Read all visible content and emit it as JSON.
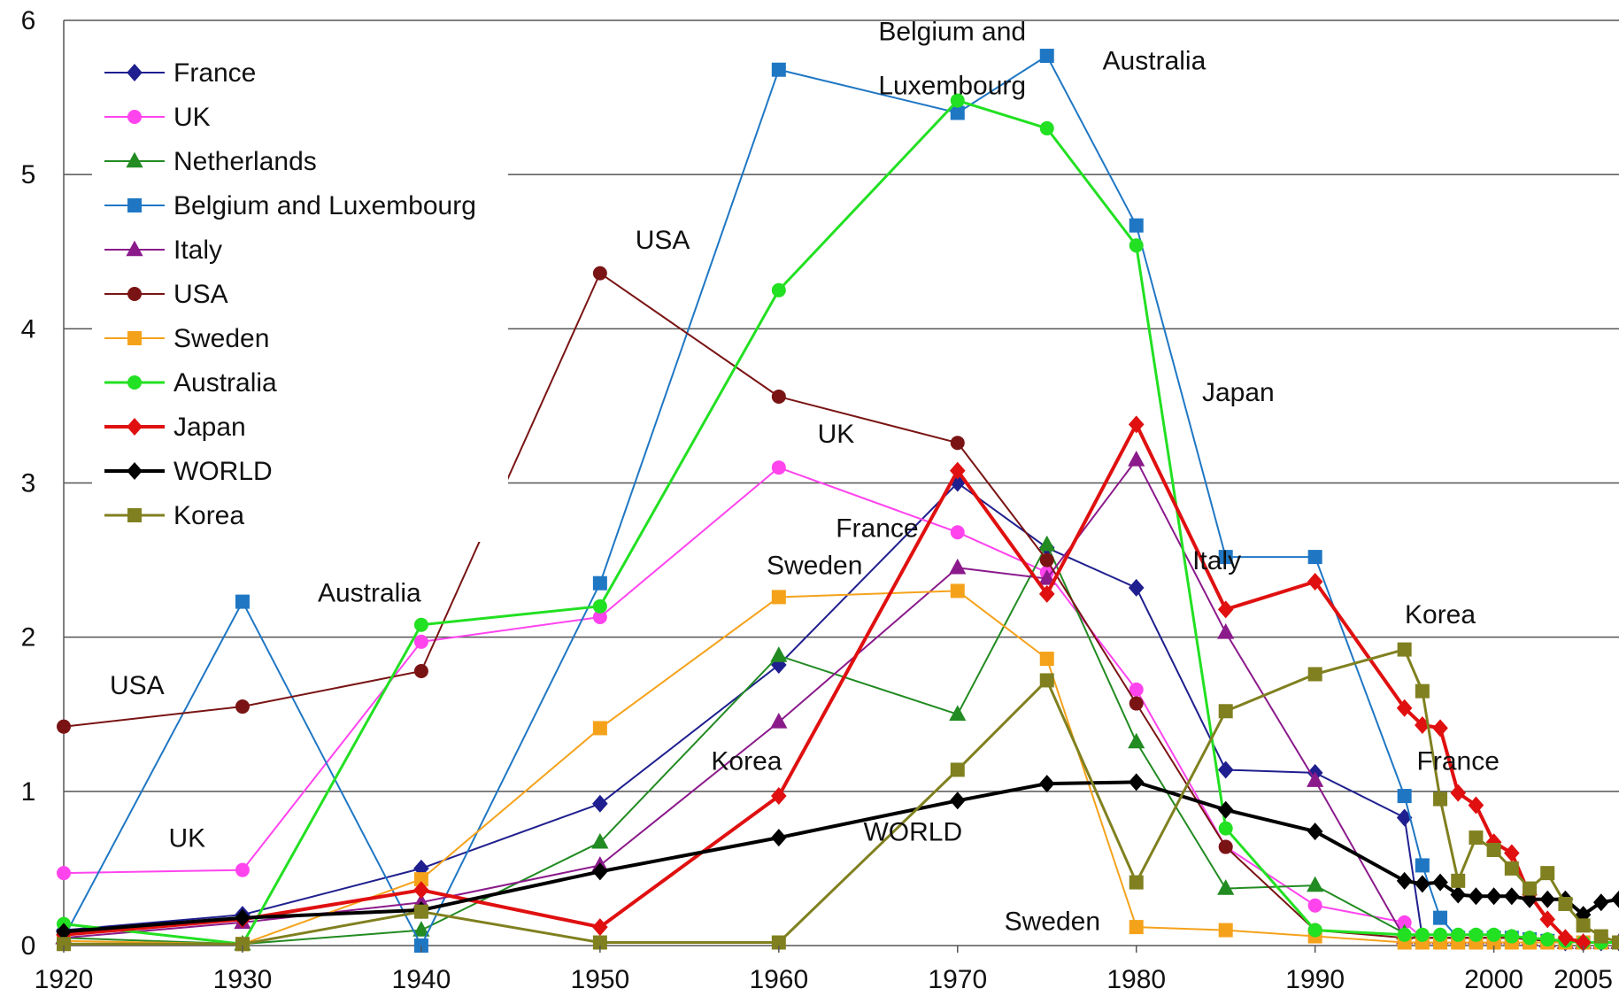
{
  "chart_data": {
    "type": "line",
    "title": "",
    "xlabel": "",
    "ylabel": "",
    "xlim": [
      1920,
      2007
    ],
    "ylim": [
      0,
      6
    ],
    "x_ticks": [
      "1920",
      "1930",
      "1940",
      "1950",
      "1960",
      "1970",
      "1980",
      "1990",
      "2000",
      "2005"
    ],
    "y_ticks": [
      "0",
      "1",
      "2",
      "3",
      "4",
      "5",
      "6"
    ],
    "grid": true,
    "legend_position": "top-left",
    "series": [
      {
        "name": "France",
        "color": "#1f1f8f",
        "marker": "diamond",
        "width": 2,
        "points": [
          [
            1920,
            0.1
          ],
          [
            1930,
            0.2
          ],
          [
            1940,
            0.5
          ],
          [
            1950,
            0.92
          ],
          [
            1960,
            1.82
          ],
          [
            1970,
            3.0
          ],
          [
            1975,
            2.58
          ],
          [
            1980,
            2.32
          ],
          [
            1985,
            1.14
          ],
          [
            1990,
            1.12
          ],
          [
            1995,
            0.83
          ],
          [
            1996,
            0.05
          ],
          [
            1997,
            0.05
          ],
          [
            1998,
            0.05
          ],
          [
            1999,
            0.05
          ],
          [
            2000,
            0.05
          ],
          [
            2001,
            0.05
          ],
          [
            2002,
            0.04
          ],
          [
            2003,
            0.03
          ],
          [
            2004,
            0.02
          ],
          [
            2005,
            0.02
          ],
          [
            2006,
            0.02
          ],
          [
            2007,
            0.02
          ]
        ]
      },
      {
        "name": "UK",
        "color": "#ff44ee",
        "marker": "circle",
        "width": 2,
        "points": [
          [
            1920,
            0.47
          ],
          [
            1930,
            0.49
          ],
          [
            1940,
            1.97
          ],
          [
            1950,
            2.13
          ],
          [
            1960,
            3.1
          ],
          [
            1970,
            2.68
          ],
          [
            1975,
            2.42
          ],
          [
            1980,
            1.66
          ],
          [
            1985,
            0.64
          ],
          [
            1990,
            0.26
          ],
          [
            1995,
            0.15
          ],
          [
            1996,
            0.05
          ],
          [
            1997,
            0.05
          ],
          [
            1998,
            0.05
          ],
          [
            1999,
            0.05
          ],
          [
            2000,
            0.05
          ],
          [
            2001,
            0.05
          ],
          [
            2002,
            0.04
          ],
          [
            2003,
            0.03
          ],
          [
            2004,
            0.02
          ],
          [
            2005,
            0.02
          ],
          [
            2006,
            0.02
          ],
          [
            2007,
            0.02
          ]
        ]
      },
      {
        "name": "Netherlands",
        "color": "#228b22",
        "marker": "triangle",
        "width": 2,
        "points": [
          [
            1920,
            0.05
          ],
          [
            1930,
            0.01
          ],
          [
            1940,
            0.1
          ],
          [
            1950,
            0.67
          ],
          [
            1960,
            1.88
          ],
          [
            1970,
            1.5
          ],
          [
            1975,
            2.6
          ],
          [
            1980,
            1.32
          ],
          [
            1985,
            0.37
          ],
          [
            1990,
            0.39
          ],
          [
            1995,
            0.08
          ],
          [
            1996,
            0.05
          ],
          [
            1997,
            0.05
          ],
          [
            1998,
            0.05
          ],
          [
            1999,
            0.05
          ],
          [
            2000,
            0.05
          ],
          [
            2001,
            0.05
          ],
          [
            2002,
            0.04
          ],
          [
            2003,
            0.03
          ],
          [
            2004,
            0.02
          ],
          [
            2005,
            0.02
          ],
          [
            2006,
            0.02
          ],
          [
            2007,
            0.02
          ]
        ]
      },
      {
        "name": "Belgium and Luxembourg",
        "color": "#1f77c4",
        "marker": "square",
        "width": 2,
        "points": [
          [
            1920,
            0.05
          ],
          [
            1930,
            2.23
          ],
          [
            1940,
            0.0
          ],
          [
            1950,
            2.35
          ],
          [
            1960,
            5.68
          ],
          [
            1970,
            5.4
          ],
          [
            1975,
            5.77
          ],
          [
            1980,
            4.67
          ],
          [
            1985,
            2.52
          ],
          [
            1990,
            2.52
          ],
          [
            1995,
            0.97
          ],
          [
            1996,
            0.52
          ],
          [
            1997,
            0.18
          ],
          [
            1998,
            0.05
          ],
          [
            1999,
            0.05
          ],
          [
            2000,
            0.05
          ],
          [
            2001,
            0.05
          ],
          [
            2002,
            0.04
          ],
          [
            2003,
            0.03
          ],
          [
            2004,
            0.02
          ],
          [
            2005,
            0.02
          ],
          [
            2006,
            0.02
          ],
          [
            2007,
            0.02
          ]
        ]
      },
      {
        "name": "Italy",
        "color": "#8b1a8b",
        "marker": "triangle",
        "width": 2,
        "points": [
          [
            1920,
            0.05
          ],
          [
            1930,
            0.15
          ],
          [
            1940,
            0.28
          ],
          [
            1950,
            0.52
          ],
          [
            1960,
            1.45
          ],
          [
            1970,
            2.45
          ],
          [
            1975,
            2.38
          ],
          [
            1980,
            3.15
          ],
          [
            1985,
            2.03
          ],
          [
            1990,
            1.07
          ],
          [
            1995,
            0.05
          ],
          [
            1996,
            0.05
          ],
          [
            1997,
            0.05
          ],
          [
            1998,
            0.05
          ],
          [
            1999,
            0.05
          ],
          [
            2000,
            0.05
          ],
          [
            2001,
            0.05
          ],
          [
            2002,
            0.04
          ],
          [
            2003,
            0.03
          ],
          [
            2004,
            0.02
          ],
          [
            2005,
            0.02
          ],
          [
            2006,
            0.02
          ],
          [
            2007,
            0.02
          ]
        ]
      },
      {
        "name": "USA",
        "color": "#7a1414",
        "marker": "circle",
        "width": 2,
        "points": [
          [
            1920,
            1.42
          ],
          [
            1930,
            1.55
          ],
          [
            1940,
            1.78
          ],
          [
            1950,
            4.36
          ],
          [
            1960,
            3.56
          ],
          [
            1970,
            3.26
          ],
          [
            1975,
            2.5
          ],
          [
            1980,
            1.57
          ],
          [
            1985,
            0.64
          ],
          [
            1990,
            0.1
          ],
          [
            1995,
            0.05
          ],
          [
            1996,
            0.05
          ],
          [
            1997,
            0.05
          ],
          [
            1998,
            0.05
          ],
          [
            1999,
            0.05
          ],
          [
            2000,
            0.05
          ],
          [
            2001,
            0.05
          ],
          [
            2002,
            0.04
          ],
          [
            2003,
            0.03
          ],
          [
            2004,
            0.02
          ],
          [
            2005,
            0.02
          ],
          [
            2006,
            0.02
          ],
          [
            2007,
            0.02
          ]
        ]
      },
      {
        "name": "Sweden",
        "color": "#f5a21b",
        "marker": "square",
        "width": 2,
        "points": [
          [
            1920,
            0.03
          ],
          [
            1930,
            0.01
          ],
          [
            1940,
            0.43
          ],
          [
            1950,
            1.41
          ],
          [
            1960,
            2.26
          ],
          [
            1970,
            2.3
          ],
          [
            1975,
            1.86
          ],
          [
            1980,
            0.12
          ],
          [
            1985,
            0.1
          ],
          [
            1990,
            0.06
          ],
          [
            1995,
            0.02
          ],
          [
            1996,
            0.02
          ],
          [
            1997,
            0.02
          ],
          [
            1998,
            0.02
          ],
          [
            1999,
            0.02
          ],
          [
            2000,
            0.02
          ],
          [
            2001,
            0.02
          ],
          [
            2002,
            0.02
          ],
          [
            2003,
            0.02
          ],
          [
            2004,
            0.02
          ],
          [
            2005,
            0.02
          ],
          [
            2006,
            0.02
          ],
          [
            2007,
            0.02
          ]
        ]
      },
      {
        "name": "Australia",
        "color": "#22e022",
        "marker": "circle",
        "width": 3,
        "points": [
          [
            1920,
            0.14
          ],
          [
            1930,
            0.01
          ],
          [
            1940,
            2.08
          ],
          [
            1950,
            2.2
          ],
          [
            1960,
            4.25
          ],
          [
            1970,
            5.48
          ],
          [
            1975,
            5.3
          ],
          [
            1980,
            4.54
          ],
          [
            1985,
            0.76
          ],
          [
            1990,
            0.1
          ],
          [
            1995,
            0.07
          ],
          [
            1996,
            0.07
          ],
          [
            1997,
            0.07
          ],
          [
            1998,
            0.07
          ],
          [
            1999,
            0.07
          ],
          [
            2000,
            0.07
          ],
          [
            2001,
            0.06
          ],
          [
            2002,
            0.05
          ],
          [
            2003,
            0.04
          ],
          [
            2004,
            0.03
          ],
          [
            2005,
            0.02
          ],
          [
            2006,
            0.02
          ],
          [
            2007,
            0.02
          ]
        ]
      },
      {
        "name": "Japan",
        "color": "#e01010",
        "marker": "diamond",
        "width": 4,
        "points": [
          [
            1920,
            0.07
          ],
          [
            1930,
            0.17
          ],
          [
            1940,
            0.36
          ],
          [
            1950,
            0.12
          ],
          [
            1960,
            0.97
          ],
          [
            1970,
            3.08
          ],
          [
            1975,
            2.28
          ],
          [
            1980,
            3.38
          ],
          [
            1985,
            2.18
          ],
          [
            1990,
            2.36
          ],
          [
            1995,
            1.54
          ],
          [
            1996,
            1.43
          ],
          [
            1997,
            1.41
          ],
          [
            1998,
            0.99
          ],
          [
            1999,
            0.91
          ],
          [
            2000,
            0.67
          ],
          [
            2001,
            0.6
          ],
          [
            2002,
            0.33
          ],
          [
            2003,
            0.17
          ],
          [
            2004,
            0.05
          ],
          [
            2005,
            0.02
          ]
        ]
      },
      {
        "name": "WORLD",
        "color": "#000000",
        "marker": "diamond",
        "width": 4,
        "points": [
          [
            1920,
            0.09
          ],
          [
            1930,
            0.18
          ],
          [
            1940,
            0.23
          ],
          [
            1950,
            0.48
          ],
          [
            1960,
            0.7
          ],
          [
            1970,
            0.94
          ],
          [
            1975,
            1.05
          ],
          [
            1980,
            1.06
          ],
          [
            1985,
            0.88
          ],
          [
            1990,
            0.74
          ],
          [
            1995,
            0.42
          ],
          [
            1996,
            0.4
          ],
          [
            1997,
            0.41
          ],
          [
            1998,
            0.33
          ],
          [
            1999,
            0.32
          ],
          [
            2000,
            0.32
          ],
          [
            2001,
            0.32
          ],
          [
            2002,
            0.3
          ],
          [
            2003,
            0.3
          ],
          [
            2004,
            0.3
          ],
          [
            2005,
            0.2
          ],
          [
            2006,
            0.28
          ],
          [
            2007,
            0.3
          ]
        ]
      },
      {
        "name": "Korea",
        "color": "#808020",
        "marker": "square",
        "width": 3,
        "points": [
          [
            1920,
            0.01
          ],
          [
            1930,
            0.01
          ],
          [
            1940,
            0.22
          ],
          [
            1950,
            0.02
          ],
          [
            1960,
            0.02
          ],
          [
            1970,
            1.14
          ],
          [
            1975,
            1.72
          ],
          [
            1980,
            0.41
          ],
          [
            1985,
            1.52
          ],
          [
            1990,
            1.76
          ],
          [
            1995,
            1.92
          ],
          [
            1996,
            1.65
          ],
          [
            1997,
            0.95
          ],
          [
            1998,
            0.42
          ],
          [
            1999,
            0.7
          ],
          [
            2000,
            0.62
          ],
          [
            2001,
            0.5
          ],
          [
            2002,
            0.37
          ],
          [
            2003,
            0.47
          ],
          [
            2004,
            0.27
          ],
          [
            2005,
            0.13
          ],
          [
            2006,
            0.06
          ],
          [
            2007,
            0.02
          ]
        ]
      }
    ],
    "annotations": [
      {
        "text": "Belgium and",
        "x": 1969.7,
        "y": 5.87
      },
      {
        "text": "Luxembourg",
        "x": 1969.7,
        "y": 5.52
      },
      {
        "text": "Australia",
        "x": 1981.0,
        "y": 5.68
      },
      {
        "text": "USA",
        "x": 1953.5,
        "y": 4.52
      },
      {
        "text": "UK",
        "x": 1963.2,
        "y": 3.26
      },
      {
        "text": "Japan",
        "x": 1985.7,
        "y": 3.53
      },
      {
        "text": "France",
        "x": 1965.5,
        "y": 2.65
      },
      {
        "text": "Sweden",
        "x": 1962.0,
        "y": 2.41
      },
      {
        "text": "Italy",
        "x": 1984.5,
        "y": 2.44
      },
      {
        "text": "Australia",
        "x": 1937.1,
        "y": 2.23
      },
      {
        "text": "Korea",
        "x": 1997.0,
        "y": 2.09
      },
      {
        "text": "USA",
        "x": 1924.1,
        "y": 1.63
      },
      {
        "text": "Korea",
        "x": 1958.2,
        "y": 1.14
      },
      {
        "text": "France",
        "x": 1998.0,
        "y": 1.14
      },
      {
        "text": "WORLD",
        "x": 1967.5,
        "y": 0.68
      },
      {
        "text": "UK",
        "x": 1926.9,
        "y": 0.64
      },
      {
        "text": "Sweden",
        "x": 1975.3,
        "y": 0.1
      }
    ]
  }
}
